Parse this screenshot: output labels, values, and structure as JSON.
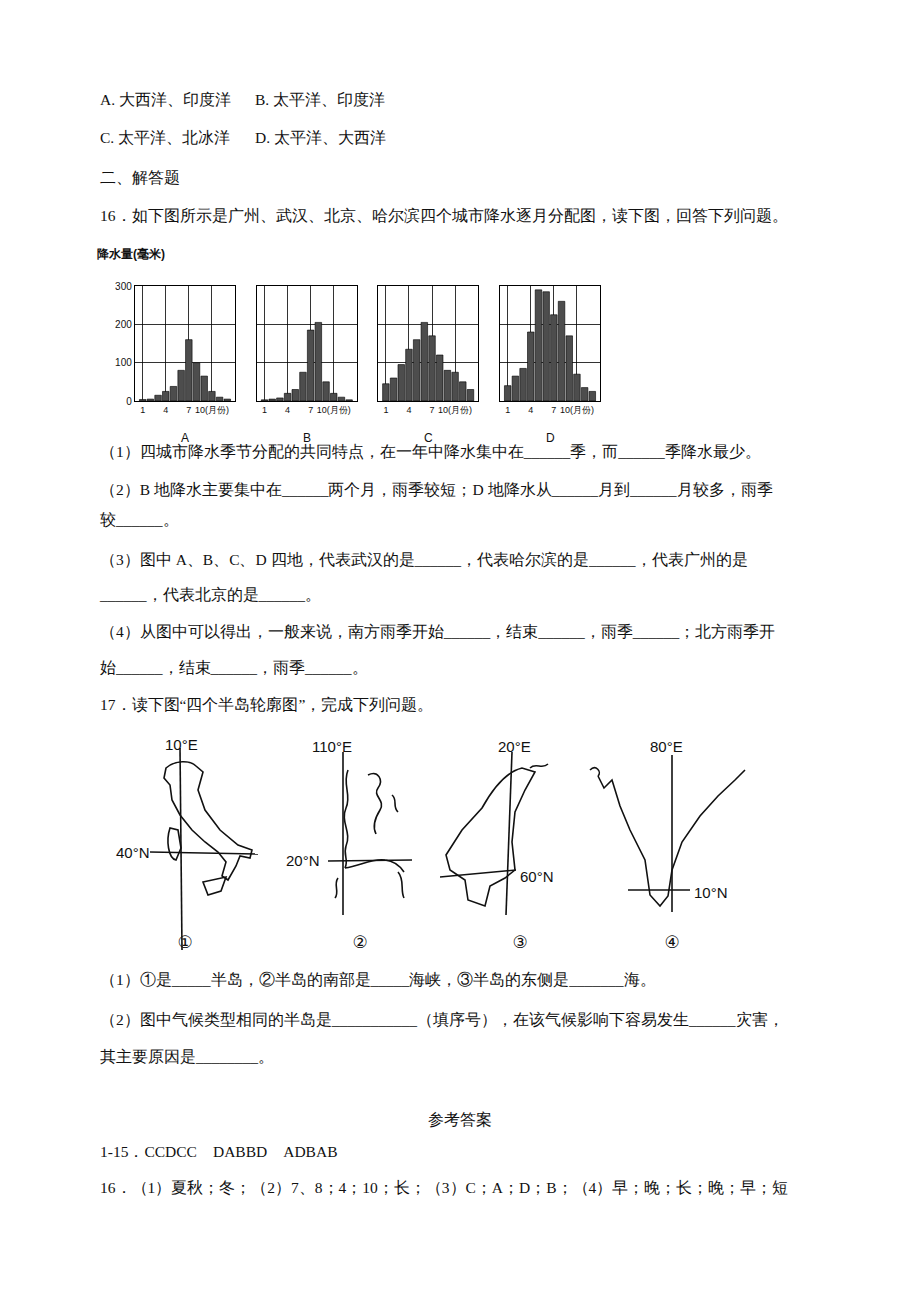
{
  "page": {
    "options": [
      "A.  大西洋、印度洋",
      "B.  太平洋、印度洋",
      "C.  太平洋、北冰洋",
      "D.  太平洋、大西洋"
    ],
    "section": "二、解答题",
    "q16": {
      "stem": "16．如下图所示是广州、武汉、北京、哈尔滨四个城市降水逐月分配图，读下图，回答下列问题。",
      "parts": [
        [
          "（1）四城市降水季节分配的共同特点，在一年中降水集中在______季，而______季降水最少。"
        ],
        [
          "（2）B 地降水主要集中在______两个月，雨季较短；D 地降水从______月到______月较多，雨季",
          "较______。"
        ],
        [
          "（3）图中 A、B、C、D 四地，代表武汉的是______，代表哈尔滨的是______，代表广州的是",
          "______，代表北京的是______。"
        ],
        [
          "（4）从图中可以得出，一般来说，南方雨季开始______，结束______，雨季______；北方雨季开",
          "始______，结束______，雨季______。"
        ]
      ]
    },
    "q17": {
      "stem": "17．读下图“四个半岛轮廓图”，完成下列问题。",
      "parts": [
        [
          "（1）①是_____半岛，②半岛的南部是_____海峡，③半岛的东侧是_______海。"
        ],
        [
          "（2）图中气候类型相同的半岛是___________（填序号），在该气候影响下容易发生______灾害，",
          "其主要原因是________。"
        ]
      ]
    },
    "maps": [
      {
        "number": "①",
        "meridian": "10°E",
        "parallel": "40°N"
      },
      {
        "number": "②",
        "meridian": "110°E",
        "parallel": "20°N"
      },
      {
        "number": "③",
        "meridian": "20°E",
        "parallel": "60°N"
      },
      {
        "number": "④",
        "meridian": "80°E",
        "parallel": "10°N"
      }
    ],
    "answers": {
      "title": "参考答案",
      "lines": [
        "1-15．CCDCC　DABBD　ADBAB",
        "16．（1）夏秋；冬；（2）7、8；4；10；长；（3）C；A；D；B；（4）早；晚；长；晚；早；短"
      ]
    }
  },
  "chart_data": [
    {
      "type": "bar",
      "title": "A",
      "ylabel": "降水量(毫米)",
      "x": [
        1,
        2,
        3,
        4,
        5,
        6,
        7,
        8,
        9,
        10,
        11,
        12
      ],
      "values": [
        4,
        5,
        15,
        25,
        38,
        80,
        160,
        100,
        65,
        25,
        10,
        5
      ],
      "color": "#4d4d4d",
      "xlim": [
        0,
        13
      ],
      "xticks": [
        1,
        4,
        7,
        {
          "value": 10,
          "label": "10(月份)"
        }
      ],
      "ylim": [
        0,
        300
      ],
      "yticks": [
        0,
        100,
        200,
        300
      ],
      "grid": true
    },
    {
      "type": "bar",
      "title": "B",
      "x": [
        1,
        2,
        3,
        4,
        5,
        6,
        7,
        8,
        9,
        10,
        11,
        12
      ],
      "values": [
        3,
        5,
        8,
        20,
        30,
        75,
        185,
        205,
        50,
        20,
        10,
        3
      ],
      "color": "#4d4d4d",
      "xlim": [
        0,
        13
      ],
      "xticks": [
        1,
        4,
        7,
        {
          "value": 10,
          "label": "10(月份)"
        }
      ],
      "ylim": [
        0,
        300
      ],
      "yticks": [
        0,
        100,
        200,
        300
      ],
      "grid": true,
      "tick_labels": "x"
    },
    {
      "type": "bar",
      "title": "C",
      "x": [
        1,
        2,
        3,
        4,
        5,
        6,
        7,
        8,
        9,
        10,
        11,
        12
      ],
      "values": [
        45,
        60,
        95,
        135,
        160,
        205,
        170,
        120,
        80,
        75,
        50,
        30
      ],
      "color": "#4d4d4d",
      "xlim": [
        0,
        13
      ],
      "xticks": [
        1,
        4,
        7,
        {
          "value": 10,
          "label": "10(月份)"
        }
      ],
      "ylim": [
        0,
        300
      ],
      "yticks": [
        0,
        100,
        200,
        300
      ],
      "grid": true,
      "tick_labels": "x"
    },
    {
      "type": "bar",
      "title": "D",
      "x": [
        1,
        2,
        3,
        4,
        5,
        6,
        7,
        8,
        9,
        10,
        11,
        12
      ],
      "values": [
        40,
        65,
        85,
        180,
        290,
        285,
        225,
        260,
        170,
        70,
        35,
        25
      ],
      "color": "#4d4d4d",
      "xlim": [
        0,
        13
      ],
      "xticks": [
        1,
        4,
        7,
        {
          "value": 10,
          "label": "10(月份)"
        }
      ],
      "ylim": [
        0,
        300
      ],
      "yticks": [
        0,
        100,
        200,
        300
      ],
      "grid": true,
      "tick_labels": "x"
    }
  ]
}
